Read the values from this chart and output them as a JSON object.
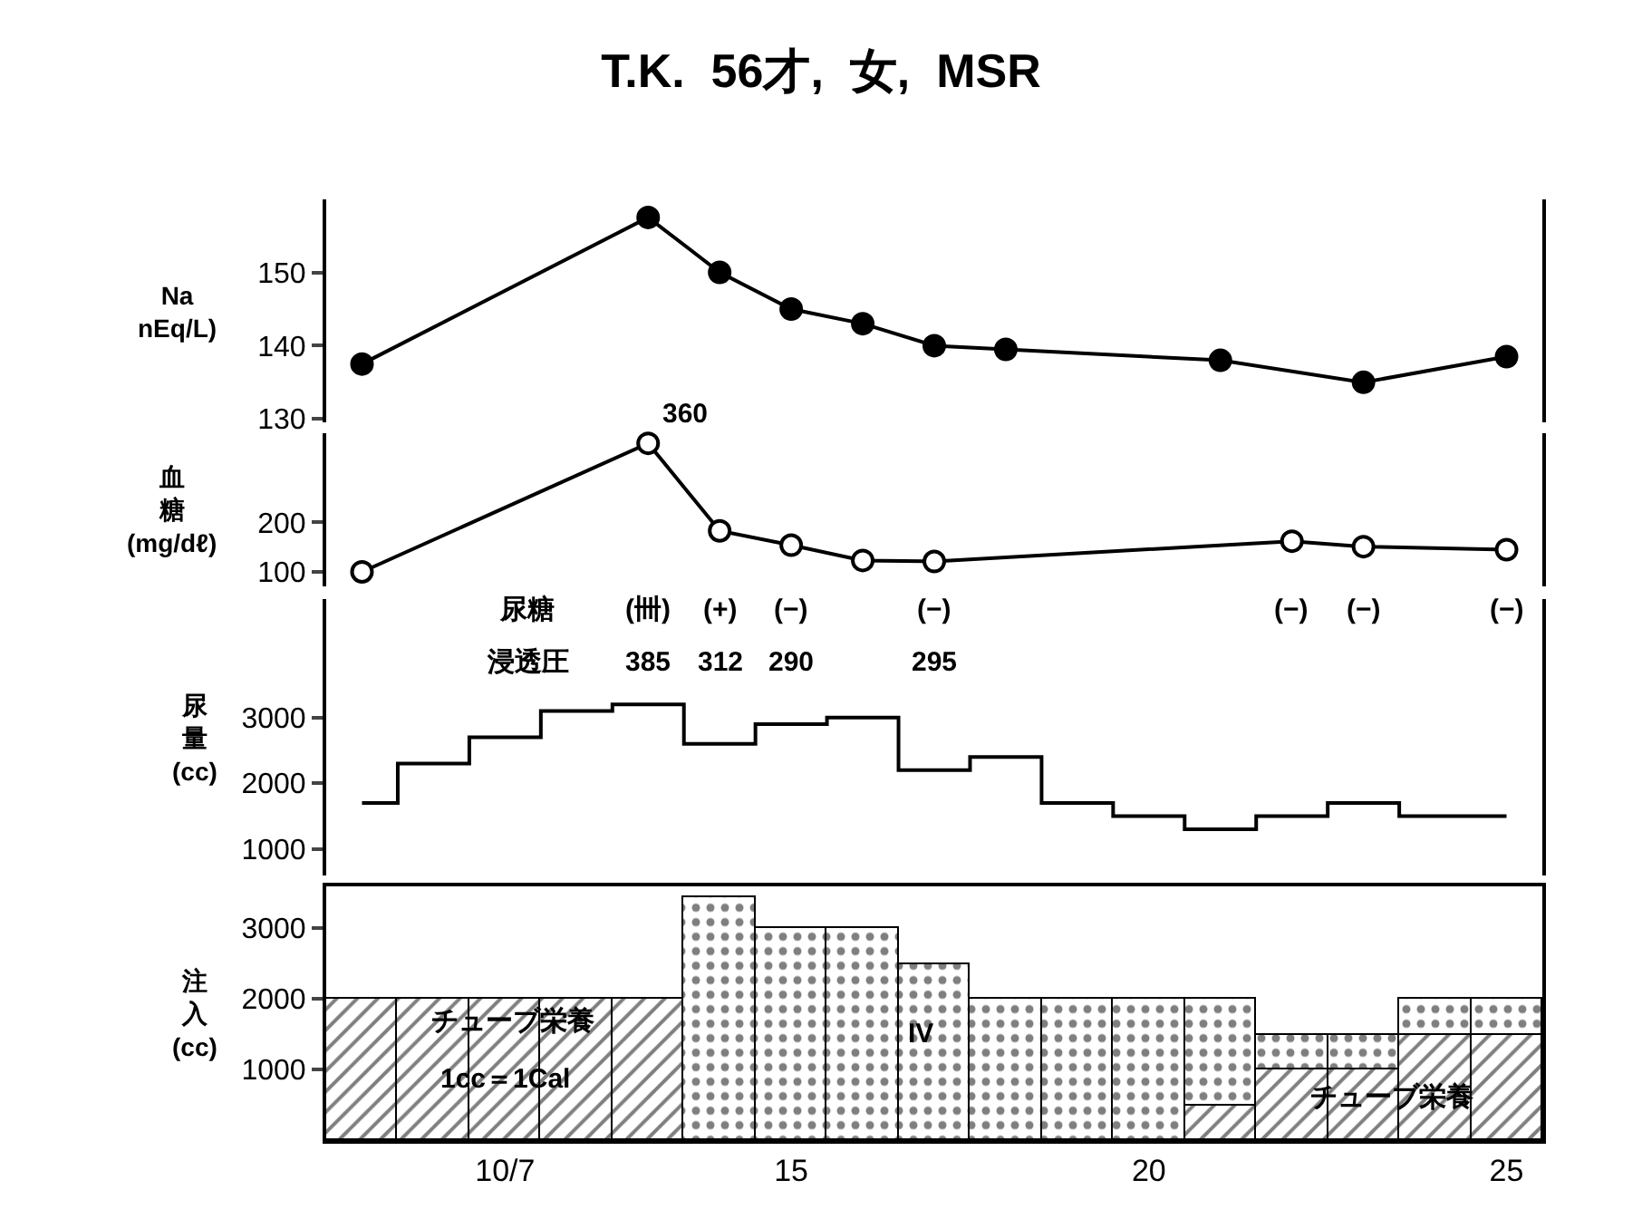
{
  "chart_data": [
    {
      "type": "line",
      "title": "T.K.  56才,  女,  MSR",
      "ylabel": "Na\nnEq/L)",
      "xlim": [
        8.5,
        25.5
      ],
      "ylim": [
        129.5,
        160
      ],
      "yticks": [
        130,
        140,
        150
      ],
      "tick_labels": "y",
      "marker": "circle",
      "series": [
        {
          "color": "#000000",
          "x": [
            9,
            13,
            14,
            15,
            16,
            17,
            18,
            21,
            23,
            25
          ],
          "values": [
            137.5,
            157.5,
            150,
            145,
            143,
            140,
            139.5,
            138,
            135,
            138.5
          ]
        }
      ]
    },
    {
      "type": "line",
      "ylabel": "血糖(mg/dℓ)",
      "xlim": [
        8.5,
        25.5
      ],
      "ylim": [
        70,
        380
      ],
      "yticks": [
        100,
        200
      ],
      "tick_labels": "y",
      "marker": "circle",
      "series": [
        {
          "color": "#000000",
          "x": [
            9,
            13,
            14,
            15,
            16,
            17,
            22,
            23,
            25
          ],
          "values": [
            100,
            360,
            183,
            154,
            123,
            121,
            162,
            151,
            145
          ],
          "value_labels": [
            null,
            "360",
            null,
            null,
            null,
            null,
            null,
            null,
            null
          ]
        }
      ]
    },
    {
      "type": "step",
      "ylabel": "尿量(cc)",
      "xlim": [
        8.5,
        25.5
      ],
      "ylim": [
        600,
        4800
      ],
      "yticks": [
        1000,
        2000,
        3000
      ],
      "tick_labels": "y",
      "series": [
        {
          "color": "#000000",
          "x": [
            9,
            10,
            11,
            12,
            13,
            14,
            15,
            16,
            17,
            18,
            19,
            20,
            21,
            22,
            23,
            24,
            25
          ],
          "values": [
            1700,
            2300,
            2700,
            3100,
            3200,
            2600,
            2900,
            3000,
            2200,
            2400,
            1700,
            1500,
            1300,
            1500,
            1700,
            1500,
            1500
          ]
        }
      ],
      "annotations": [
        "尿糖",
        "(卌)",
        "(+)",
        "(−)",
        "(−)",
        "(−)",
        "(−)",
        "(−)",
        "浸透圧",
        "385",
        "312",
        "290",
        "295"
      ]
    },
    {
      "type": "bar",
      "stacked": true,
      "ylabel": "注入(cc)",
      "xlim": [
        8.5,
        25.5
      ],
      "xticks": [
        {
          "value": 11,
          "label": "10/7"
        },
        15,
        20,
        25
      ],
      "ylim": [
        0,
        3600
      ],
      "yticks": [
        1000,
        2000,
        3000
      ],
      "x": [
        9,
        10,
        11,
        12,
        13,
        14,
        15,
        16,
        17,
        18,
        19,
        20,
        21,
        22,
        23,
        24,
        25
      ],
      "series": [
        {
          "color": "#000000",
          "values": [
            2000,
            2000,
            2000,
            2000,
            2000,
            0,
            0,
            0,
            0,
            0,
            0,
            0,
            500,
            1000,
            1000,
            1500,
            1500
          ]
        },
        {
          "color": "#000000",
          "values": [
            0,
            0,
            0,
            0,
            0,
            3450,
            3000,
            3000,
            2500,
            2000,
            2000,
            2000,
            1500,
            500,
            500,
            500,
            500
          ]
        }
      ],
      "annotations": [
        "チューブ栄養",
        "1cc＝1Cal",
        "IV",
        "チューブ栄養"
      ]
    }
  ]
}
